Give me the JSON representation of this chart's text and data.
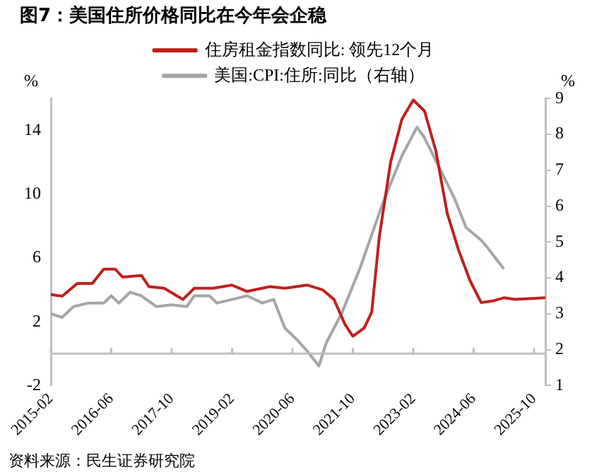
{
  "chart_data": {
    "type": "line",
    "title": "图7：美国住所价格同比在今年会企稳",
    "ylabel": "%",
    "y2label": "%",
    "xlim": [
      "2015-02",
      "2026-01"
    ],
    "xticks": [
      "2015-02",
      "2016-06",
      "2017-10",
      "2019-02",
      "2020-06",
      "2021-10",
      "2023-02",
      "2024-06",
      "2025-10"
    ],
    "ylim": [
      -2,
      16
    ],
    "yticks": [
      -2,
      2,
      6,
      10,
      14
    ],
    "y2lim": [
      1,
      9
    ],
    "y2ticks": [
      1,
      2,
      3,
      4,
      5,
      6,
      7,
      8,
      9
    ],
    "grid": false,
    "legend": "top",
    "marker": "none",
    "line_style": "solid",
    "series": [
      {
        "name": "住房租金指数同比: 领先12个月",
        "color": "#c0201c",
        "x": [
          "2015-02",
          "2015-05",
          "2015-09",
          "2016-01",
          "2016-04",
          "2016-07",
          "2016-09",
          "2017-02",
          "2017-04",
          "2017-08",
          "2018-01",
          "2018-04",
          "2018-09",
          "2019-02",
          "2019-06",
          "2019-12",
          "2020-04",
          "2020-10",
          "2021-02",
          "2021-05",
          "2021-08",
          "2021-10",
          "2022-01",
          "2022-03",
          "2022-05",
          "2022-08",
          "2022-11",
          "2023-02",
          "2023-05",
          "2023-08",
          "2023-11",
          "2024-02",
          "2024-05",
          "2024-08",
          "2024-11",
          "2025-02",
          "2025-05",
          "2026-01"
        ],
        "values": [
          3.7,
          3.6,
          4.4,
          4.4,
          5.3,
          5.3,
          4.8,
          4.9,
          4.2,
          4.1,
          3.4,
          4.1,
          4.1,
          4.3,
          3.9,
          4.2,
          4.1,
          4.3,
          4.0,
          3.4,
          1.8,
          1.1,
          1.6,
          2.6,
          7.3,
          12.0,
          14.7,
          15.9,
          15.2,
          12.7,
          8.8,
          6.5,
          4.6,
          3.2,
          3.3,
          3.5,
          3.4,
          3.5
        ]
      },
      {
        "name": "美国:CPI:住所:同比（右轴）",
        "color": "#a6a6a6",
        "axis": "y2",
        "x": [
          "2015-02",
          "2015-05",
          "2015-08",
          "2015-12",
          "2016-04",
          "2016-06",
          "2016-08",
          "2016-11",
          "2017-02",
          "2017-06",
          "2017-10",
          "2018-02",
          "2018-04",
          "2018-08",
          "2018-10",
          "2019-02",
          "2019-06",
          "2019-10",
          "2020-01",
          "2020-04",
          "2020-07",
          "2020-10",
          "2021-01",
          "2021-03",
          "2021-07",
          "2021-12",
          "2022-03",
          "2022-06",
          "2022-11",
          "2023-03",
          "2023-05",
          "2023-09",
          "2024-01",
          "2024-04",
          "2024-08",
          "2024-10",
          "2025-02"
        ],
        "values": [
          3.0,
          2.9,
          3.2,
          3.3,
          3.3,
          3.5,
          3.3,
          3.6,
          3.5,
          3.2,
          3.25,
          3.2,
          3.5,
          3.5,
          3.3,
          3.4,
          3.5,
          3.3,
          3.4,
          2.6,
          2.3,
          1.95,
          1.55,
          2.2,
          3.0,
          4.3,
          5.2,
          6.1,
          7.4,
          8.2,
          7.9,
          7.05,
          6.2,
          5.4,
          5.05,
          4.8,
          4.25
        ]
      }
    ],
    "annotations": [
      "资料来源：民生证券研究院"
    ]
  }
}
